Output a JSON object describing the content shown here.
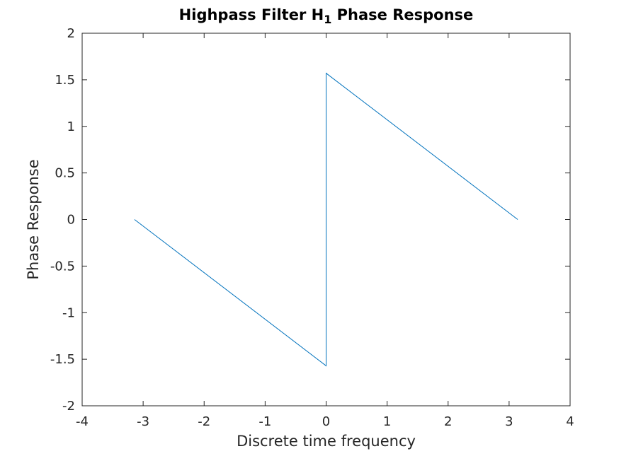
{
  "chart_data": {
    "type": "line",
    "title": "Highpass Filter H",
    "title_subscript": "1",
    "title_suffix": " Phase Response",
    "xlabel": "Discrete time frequency",
    "ylabel": "Phase Response",
    "xlim": [
      -4,
      4
    ],
    "ylim": [
      -2,
      2
    ],
    "xticks": [
      -4,
      -3,
      -2,
      -1,
      0,
      1,
      2,
      3,
      4
    ],
    "yticks": [
      -2,
      -1.5,
      -1,
      -0.5,
      0,
      0.5,
      1,
      1.5,
      2
    ],
    "xtick_labels": [
      "-4",
      "-3",
      "-2",
      "-1",
      "0",
      "1",
      "2",
      "3",
      "4"
    ],
    "ytick_labels": [
      "-2",
      "-1.5",
      "-1",
      "-0.5",
      "0",
      "0.5",
      "1",
      "1.5",
      "2"
    ],
    "grid": false,
    "box": true,
    "series": [
      {
        "color": "#0072BD",
        "x": [
          -3.1416,
          0,
          0,
          3.1416
        ],
        "y": [
          0,
          -1.5708,
          1.5708,
          0
        ]
      }
    ]
  }
}
